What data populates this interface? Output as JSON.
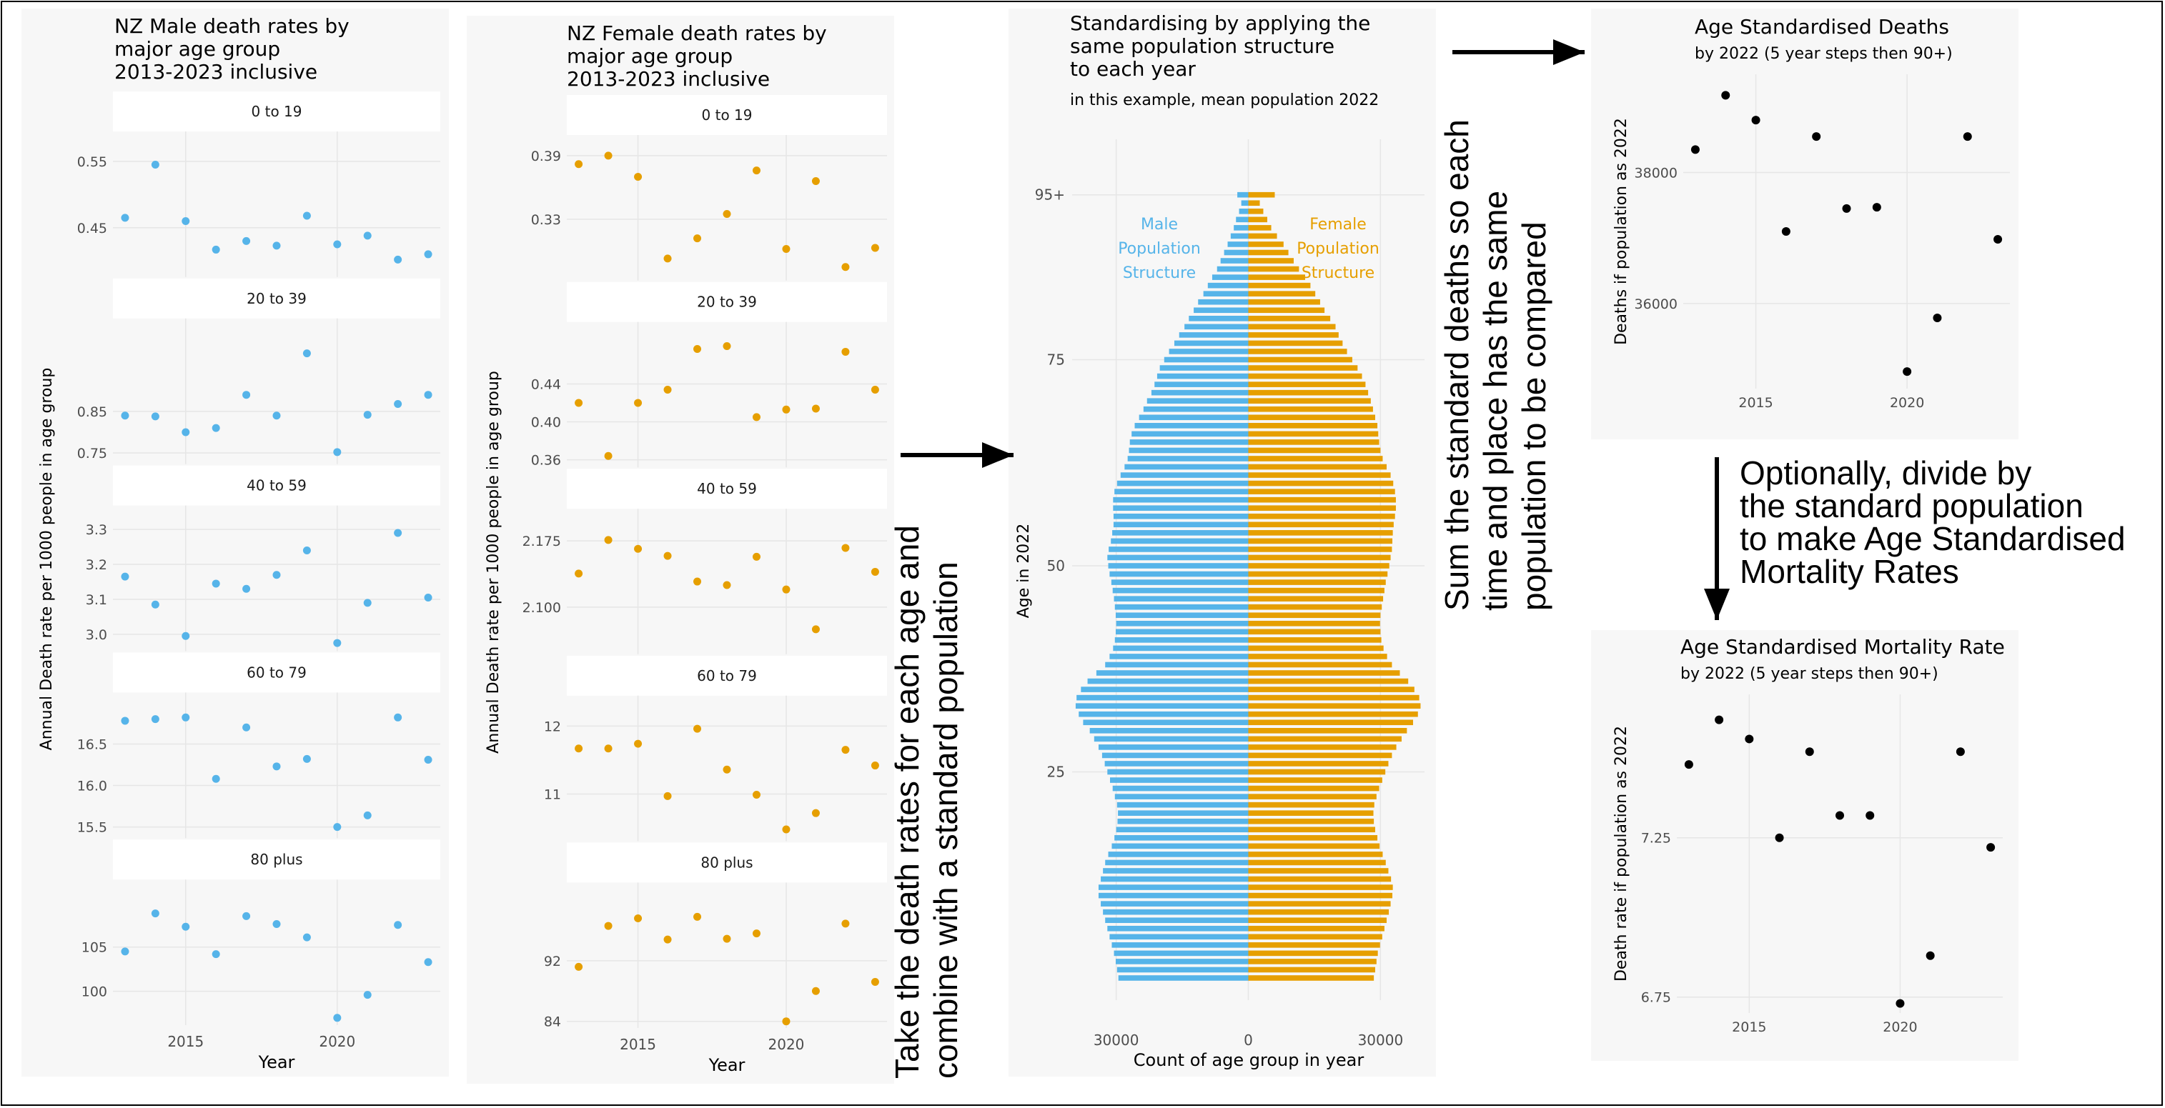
{
  "colors": {
    "male": "#56B4E9",
    "female": "#E69F00",
    "neutral": "#000000",
    "panel_bg": "#F7F7F7",
    "grid": "#E6E6E6",
    "strip_bg": "#FFFFFF"
  },
  "chart_data": [
    {
      "id": "male",
      "type": "scatter",
      "facet": true,
      "title": "NZ Male death rates by\nmajor age group\n2013-2023 inclusive",
      "xlabel": "Year",
      "ylabel": "Annual Death rate per 1000 people in age group",
      "xlim": [
        2012.6,
        2023.4
      ],
      "x_ticks": [
        2015,
        2020
      ],
      "x_tick_labels": [
        "2015",
        "2020"
      ],
      "x": [
        2013,
        2014,
        2015,
        2016,
        2017,
        2018,
        2019,
        2020,
        2021,
        2022,
        2023
      ],
      "panels": [
        {
          "label": "0 to 19",
          "ylim": [
            0.38,
            0.58
          ],
          "y_ticks": [
            0.45,
            0.55
          ],
          "y_tick_labels": [
            "0.45",
            "0.55"
          ],
          "values": [
            0.465,
            0.545,
            0.46,
            0.417,
            0.43,
            0.423,
            0.468,
            0.425,
            0.438,
            0.402,
            0.41
          ]
        },
        {
          "label": "20 to 39",
          "ylim": [
            0.73,
            1.05
          ],
          "y_ticks": [
            0.75,
            0.85
          ],
          "y_tick_labels": [
            "0.75",
            "0.85"
          ],
          "values": [
            0.84,
            0.838,
            0.8,
            0.81,
            0.89,
            0.84,
            0.99,
            0.752,
            0.842,
            0.868,
            0.89
          ]
        },
        {
          "label": "40 to 59",
          "ylim": [
            2.96,
            3.34
          ],
          "y_ticks": [
            3.0,
            3.1,
            3.2,
            3.3
          ],
          "y_tick_labels": [
            "3.0",
            "3.1",
            "3.2",
            "3.3"
          ],
          "values": [
            3.165,
            3.085,
            2.995,
            3.145,
            3.13,
            3.17,
            3.24,
            2.975,
            3.09,
            3.29,
            3.105
          ]
        },
        {
          "label": "60 to 79",
          "ylim": [
            15.4,
            17.0
          ],
          "y_ticks": [
            15.5,
            16.0,
            16.5
          ],
          "y_tick_labels": [
            "15.5",
            "16.0",
            "16.5"
          ],
          "values": [
            16.78,
            16.8,
            16.82,
            16.08,
            16.7,
            16.23,
            16.32,
            15.5,
            15.64,
            16.82,
            16.31
          ]
        },
        {
          "label": "80 plus",
          "ylim": [
            96.5,
            111.5
          ],
          "y_ticks": [
            100,
            105
          ],
          "y_tick_labels": [
            "100",
            "105"
          ],
          "values": [
            104.5,
            108.8,
            107.3,
            104.2,
            108.5,
            107.6,
            106.1,
            97,
            99.6,
            107.5,
            103.3
          ]
        }
      ]
    },
    {
      "id": "female",
      "type": "scatter",
      "facet": true,
      "title": "NZ Female death rates by\nmajor age group\n2013-2023 inclusive",
      "xlabel": "Year",
      "ylabel": "Annual Death rate per 1000 people in age group",
      "xlim": [
        2012.6,
        2023.4
      ],
      "x_ticks": [
        2015,
        2020
      ],
      "x_tick_labels": [
        "2015",
        "2020"
      ],
      "x": [
        2013,
        2014,
        2015,
        2016,
        2017,
        2018,
        2019,
        2020,
        2021,
        2022,
        2023
      ],
      "panels": [
        {
          "label": "0 to 19",
          "ylim": [
            0.275,
            0.4
          ],
          "y_ticks": [
            0.33,
            0.39
          ],
          "y_tick_labels": [
            "0.33",
            "0.39"
          ],
          "values": [
            0.382,
            0.39,
            0.37,
            0.293,
            0.312,
            0.335,
            0.376,
            0.302,
            0.366,
            0.285,
            0.303
          ]
        },
        {
          "label": "20 to 39",
          "ylim": [
            0.355,
            0.495
          ],
          "y_ticks": [
            0.36,
            0.4,
            0.44
          ],
          "y_tick_labels": [
            "0.36",
            "0.40",
            "0.44"
          ],
          "values": [
            0.42,
            0.364,
            0.42,
            0.434,
            0.477,
            0.48,
            0.405,
            0.413,
            0.414,
            0.474,
            0.434
          ]
        },
        {
          "label": "40 to 59",
          "ylim": [
            2.05,
            2.2
          ],
          "y_ticks": [
            2.1,
            2.175
          ],
          "y_tick_labels": [
            "2.100",
            "2.175"
          ],
          "values": [
            2.138,
            2.176,
            2.166,
            2.158,
            2.129,
            2.125,
            2.157,
            2.12,
            2.075,
            2.167,
            2.14
          ]
        },
        {
          "label": "60 to 79",
          "ylim": [
            10.35,
            12.3
          ],
          "y_ticks": [
            11,
            12
          ],
          "y_tick_labels": [
            "11",
            "12"
          ],
          "values": [
            11.67,
            11.67,
            11.74,
            10.97,
            11.96,
            11.36,
            10.99,
            10.48,
            10.72,
            11.65,
            11.42
          ]
        },
        {
          "label": "80 plus",
          "ylim": [
            83.5,
            101
          ],
          "y_ticks": [
            84,
            92
          ],
          "y_tick_labels": [
            "84",
            "92"
          ],
          "values": [
            91.2,
            96.6,
            97.6,
            94.8,
            97.8,
            94.9,
            95.6,
            84,
            88,
            96.9,
            89.2
          ]
        }
      ]
    },
    {
      "id": "pyramid",
      "type": "bar",
      "orientation": "horizontal",
      "title": "Standardising by applying the\nsame population structure\nto each year",
      "subtitle": "in this example, mean population 2022",
      "xlabel": "Count of age group in year",
      "ylabel": "Age in 2022",
      "xlim": [
        -40000,
        40000
      ],
      "x_ticks": [
        -30000,
        0,
        30000
      ],
      "x_tick_labels": [
        "30000",
        "0",
        "30000"
      ],
      "y_ticks": [
        25,
        50,
        75,
        95
      ],
      "y_tick_labels": [
        "25",
        "50",
        "75",
        "95+"
      ],
      "ages": [
        0,
        1,
        2,
        3,
        4,
        5,
        6,
        7,
        8,
        9,
        10,
        11,
        12,
        13,
        14,
        15,
        16,
        17,
        18,
        19,
        20,
        21,
        22,
        23,
        24,
        25,
        26,
        27,
        28,
        29,
        30,
        31,
        32,
        33,
        34,
        35,
        36,
        37,
        38,
        39,
        40,
        41,
        42,
        43,
        44,
        45,
        46,
        47,
        48,
        49,
        50,
        51,
        52,
        53,
        54,
        55,
        56,
        57,
        58,
        59,
        60,
        61,
        62,
        63,
        64,
        65,
        66,
        67,
        68,
        69,
        70,
        71,
        72,
        73,
        74,
        75,
        76,
        77,
        78,
        79,
        80,
        81,
        82,
        83,
        84,
        85,
        86,
        87,
        88,
        89,
        90,
        91,
        92,
        93,
        94,
        95
      ],
      "male": [
        29500,
        29800,
        30100,
        30500,
        31000,
        31500,
        32000,
        32500,
        33000,
        33500,
        34000,
        34000,
        33500,
        33000,
        32500,
        31800,
        31000,
        30400,
        30000,
        29700,
        29600,
        29800,
        30300,
        30800,
        31400,
        32000,
        32600,
        33200,
        34000,
        35000,
        36000,
        37500,
        38500,
        39200,
        39000,
        38000,
        36500,
        34500,
        32500,
        31500,
        30700,
        30300,
        30100,
        30000,
        30100,
        30300,
        30500,
        30800,
        31100,
        31500,
        31800,
        32000,
        31700,
        31200,
        30900,
        30600,
        30600,
        30700,
        30700,
        30400,
        29800,
        29000,
        28100,
        27400,
        27100,
        26900,
        26500,
        25800,
        24800,
        23800,
        23000,
        22000,
        21300,
        20700,
        20100,
        19100,
        18000,
        16800,
        15700,
        14500,
        13500,
        12400,
        11400,
        10200,
        9200,
        8200,
        7100,
        6300,
        5500,
        4700,
        4000,
        3300,
        2800,
        2100,
        1600,
        2500
      ],
      "female": [
        28500,
        28800,
        29100,
        29400,
        29900,
        30400,
        30900,
        31400,
        31900,
        32300,
        32700,
        32800,
        32400,
        31800,
        31200,
        30500,
        29800,
        29300,
        28800,
        28500,
        28400,
        28600,
        29100,
        29700,
        30400,
        31100,
        31800,
        32600,
        33600,
        34800,
        36000,
        37400,
        38500,
        39100,
        38800,
        37700,
        36300,
        34400,
        32600,
        31500,
        30700,
        30200,
        30000,
        29900,
        30000,
        30300,
        30600,
        30900,
        31200,
        31600,
        32000,
        32300,
        32600,
        32700,
        32800,
        33000,
        33300,
        33500,
        33500,
        33300,
        32900,
        32300,
        31400,
        30500,
        30000,
        29700,
        29500,
        29300,
        28800,
        28300,
        27800,
        27200,
        26600,
        25800,
        24800,
        23600,
        22400,
        21400,
        20500,
        19800,
        18600,
        17300,
        16300,
        15200,
        14100,
        12900,
        11500,
        10300,
        9100,
        8000,
        6500,
        5200,
        4300,
        3400,
        2600,
        6000
      ],
      "annotations": {
        "male": "Male\nPopulation\nStructure",
        "female": "Female\nPopulation\nStructure"
      }
    },
    {
      "id": "asd",
      "type": "scatter",
      "title": "Age Standardised Deaths",
      "subtitle": "by 2022 (5 year steps then 90+)",
      "ylabel": "Deaths if population as 2022",
      "xlim": [
        2012.6,
        2023.4
      ],
      "ylim": [
        34700,
        39500
      ],
      "x_ticks": [
        2015,
        2020
      ],
      "x_tick_labels": [
        "2015",
        "2020"
      ],
      "y_ticks": [
        36000,
        38000
      ],
      "y_tick_labels": [
        "36000",
        "38000"
      ],
      "x": [
        2013,
        2014,
        2015,
        2016,
        2017,
        2018,
        2019,
        2020,
        2021,
        2022,
        2023
      ],
      "values": [
        38350,
        39180,
        38800,
        37100,
        38550,
        37450,
        37470,
        34960,
        35780,
        38550,
        36980
      ]
    },
    {
      "id": "asmr",
      "type": "scatter",
      "title": "Age Standardised Mortality Rate",
      "subtitle": "by 2022 (5 year steps then 90+)",
      "ylabel": "Death rate if population as 2022",
      "xlim": [
        2012.6,
        2023.4
      ],
      "ylim": [
        6.7,
        7.7
      ],
      "x_ticks": [
        2015,
        2020
      ],
      "x_tick_labels": [
        "2015",
        "2020"
      ],
      "y_ticks": [
        6.75,
        7.25
      ],
      "y_tick_labels": [
        "6.75",
        "7.25"
      ],
      "x": [
        2013,
        2014,
        2015,
        2016,
        2017,
        2018,
        2019,
        2020,
        2021,
        2022,
        2023
      ],
      "values": [
        7.48,
        7.62,
        7.56,
        7.25,
        7.52,
        7.32,
        7.32,
        6.73,
        6.88,
        7.52,
        7.22
      ]
    }
  ],
  "annotations": {
    "arrow1": "Take the death rates for each age and\ncombine with a standard population",
    "arrow2": "Sum the standard deaths so each\ntime and place has the same\npopulation to be compared",
    "arrow3": "Optionally, divide by\nthe standard population\nto make Age Standardised\nMortality Rates"
  }
}
